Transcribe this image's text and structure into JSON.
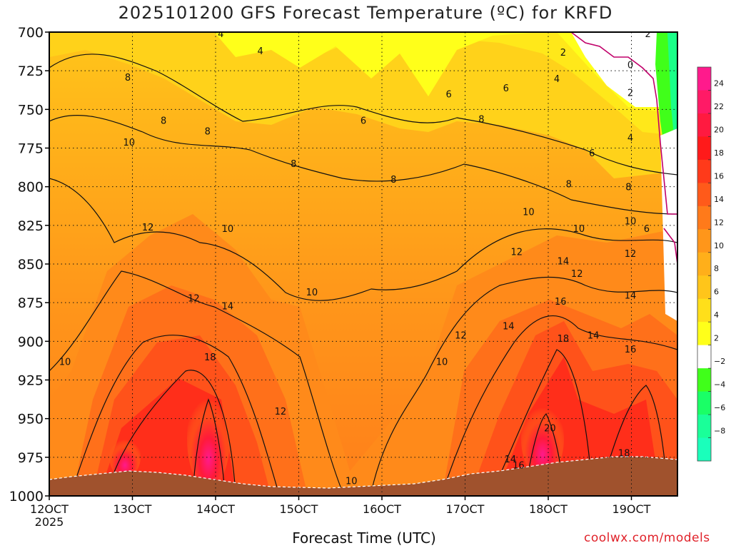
{
  "chart_data": {
    "type": "heatmap",
    "title": "2025101200 GFS Forecast Temperature (ºC) for KRFD",
    "xlabel": "Forecast Time (UTC)",
    "ylabel": "",
    "x_ticks": [
      "12OCT",
      "13OCT",
      "14OCT",
      "15OCT",
      "16OCT",
      "17OCT",
      "18OCT",
      "19OCT"
    ],
    "x_tick_year": "2025",
    "y_ticks": [
      700,
      725,
      750,
      775,
      800,
      825,
      850,
      875,
      900,
      925,
      950,
      975,
      1000
    ],
    "ylim": [
      1000,
      700
    ],
    "grid": true,
    "colorbar": {
      "ticks": [
        "24",
        "22",
        "20",
        "18",
        "16",
        "14",
        "12",
        "10",
        "8",
        "6",
        "4",
        "2",
        "−2",
        "−4",
        "−6",
        "−8"
      ],
      "colors": [
        "#ff1a8c",
        "#ff1a66",
        "#ff1a40",
        "#ff1a1a",
        "#ff3a1a",
        "#ff5a1a",
        "#ff7a1a",
        "#ff961a",
        "#ffaf1a",
        "#ffc51a",
        "#ffdf1a",
        "#ffff1a",
        "#ffffff",
        "#40ff1a",
        "#1aff66",
        "#1aff99",
        "#1affbb"
      ]
    },
    "contour_labels": [
      {
        "text": "4",
        "x": 0.273,
        "p": 701
      },
      {
        "text": "4",
        "x": 0.336,
        "p": 712
      },
      {
        "text": "2",
        "x": 0.818,
        "p": 713
      },
      {
        "text": "2",
        "x": 0.953,
        "p": 701
      },
      {
        "text": "0",
        "x": 0.925,
        "p": 721
      },
      {
        "text": "2",
        "x": 0.925,
        "p": 739
      },
      {
        "text": "4",
        "x": 0.925,
        "p": 768
      },
      {
        "text": "4",
        "x": 0.808,
        "p": 730
      },
      {
        "text": "6",
        "x": 0.636,
        "p": 740
      },
      {
        "text": "6",
        "x": 0.727,
        "p": 736
      },
      {
        "text": "6",
        "x": 0.5,
        "p": 757
      },
      {
        "text": "6",
        "x": 0.864,
        "p": 778
      },
      {
        "text": "8",
        "x": 0.125,
        "p": 729
      },
      {
        "text": "8",
        "x": 0.182,
        "p": 757
      },
      {
        "text": "8",
        "x": 0.252,
        "p": 764
      },
      {
        "text": "8",
        "x": 0.389,
        "p": 785
      },
      {
        "text": "8",
        "x": 0.548,
        "p": 795
      },
      {
        "text": "8",
        "x": 0.688,
        "p": 756
      },
      {
        "text": "8",
        "x": 0.827,
        "p": 798
      },
      {
        "text": "8",
        "x": 0.922,
        "p": 800
      },
      {
        "text": "10",
        "x": 0.127,
        "p": 771
      },
      {
        "text": "10",
        "x": 0.284,
        "p": 827
      },
      {
        "text": "10",
        "x": 0.418,
        "p": 868
      },
      {
        "text": "10",
        "x": 0.763,
        "p": 816
      },
      {
        "text": "10",
        "x": 0.843,
        "p": 827
      },
      {
        "text": "10",
        "x": 0.925,
        "p": 822
      },
      {
        "text": "10",
        "x": 0.025,
        "p": 913
      },
      {
        "text": "10",
        "x": 0.625,
        "p": 913
      },
      {
        "text": "10",
        "x": 0.481,
        "p": 990
      },
      {
        "text": "12",
        "x": 0.157,
        "p": 826
      },
      {
        "text": "12",
        "x": 0.23,
        "p": 872
      },
      {
        "text": "12",
        "x": 0.368,
        "p": 945
      },
      {
        "text": "12",
        "x": 0.744,
        "p": 842
      },
      {
        "text": "12",
        "x": 0.84,
        "p": 856
      },
      {
        "text": "12",
        "x": 0.655,
        "p": 896
      },
      {
        "text": "12",
        "x": 0.925,
        "p": 843
      },
      {
        "text": "6",
        "x": 0.951,
        "p": 827
      },
      {
        "text": "14",
        "x": 0.284,
        "p": 877
      },
      {
        "text": "14",
        "x": 0.818,
        "p": 848
      },
      {
        "text": "14",
        "x": 0.731,
        "p": 890
      },
      {
        "text": "14",
        "x": 0.866,
        "p": 896
      },
      {
        "text": "14",
        "x": 0.925,
        "p": 870
      },
      {
        "text": "14",
        "x": 0.734,
        "p": 976
      },
      {
        "text": "16",
        "x": 0.814,
        "p": 874
      },
      {
        "text": "16",
        "x": 0.925,
        "p": 905
      },
      {
        "text": "16",
        "x": 0.747,
        "p": 980
      },
      {
        "text": "18",
        "x": 0.256,
        "p": 910
      },
      {
        "text": "18",
        "x": 0.818,
        "p": 898
      },
      {
        "text": "18",
        "x": 0.915,
        "p": 972
      },
      {
        "text": "20",
        "x": 0.797,
        "p": 956
      }
    ]
  },
  "credit": "coolwx.com/models"
}
